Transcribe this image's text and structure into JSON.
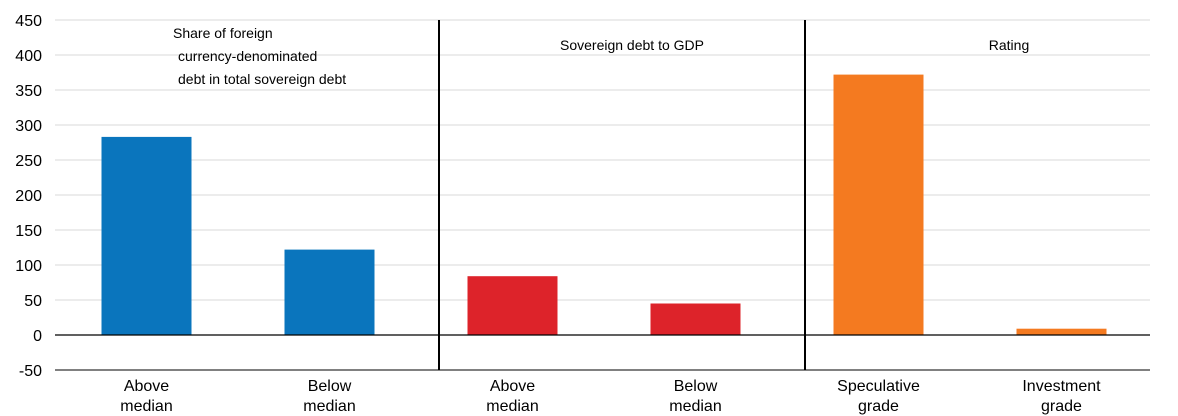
{
  "chart_data": {
    "type": "bar",
    "ylim": [
      -50,
      450
    ],
    "yticks": [
      -50,
      0,
      50,
      100,
      150,
      200,
      250,
      300,
      350,
      400,
      450
    ],
    "grid": true,
    "legend": "none",
    "categories": [
      [
        "Above",
        "median"
      ],
      [
        "Below",
        "median"
      ],
      [
        "Above",
        "median"
      ],
      [
        "Below",
        "median"
      ],
      [
        "Speculative",
        "grade"
      ],
      [
        "Investment",
        "grade"
      ]
    ],
    "values": [
      283,
      122,
      84,
      45,
      372,
      9
    ],
    "colors": [
      "#0a75bd",
      "#0a75bd",
      "#dd232a",
      "#dd232a",
      "#f47a20",
      "#f47a20"
    ],
    "panels": [
      {
        "title_lines": [
          "Share of foreign",
          "currency-denominated",
          "debt in total sovereign debt"
        ],
        "categories": [
          0,
          1
        ]
      },
      {
        "title_lines": [
          "Sovereign debt to GDP"
        ],
        "categories": [
          2,
          3
        ]
      },
      {
        "title_lines": [
          "Rating"
        ],
        "categories": [
          4,
          5
        ]
      }
    ]
  }
}
